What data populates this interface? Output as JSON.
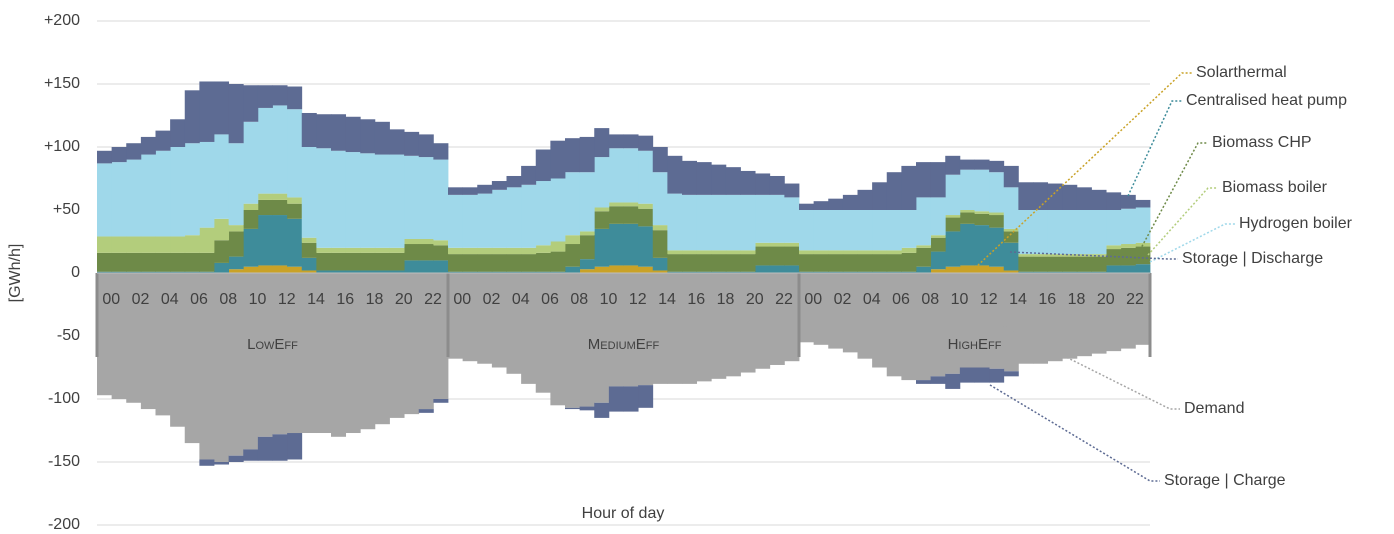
{
  "chart_data": {
    "type": "stacked-step-area",
    "y_label": "[GWh/h]",
    "x_label": "Hour of day",
    "groups": [
      "LowEff",
      "MediumEff",
      "HighEff"
    ],
    "categories": [
      "00",
      null,
      "02",
      null,
      "04",
      null,
      "06",
      null,
      "08",
      null,
      "10",
      null,
      "12",
      null,
      "14",
      null,
      "16",
      null,
      "18",
      null,
      "20",
      null,
      "22",
      null,
      "00",
      null,
      "02",
      null,
      "04",
      null,
      "06",
      null,
      "08",
      null,
      "10",
      null,
      "12",
      null,
      "14",
      null,
      "16",
      null,
      "18",
      null,
      "20",
      null,
      "22",
      null,
      "00",
      null,
      "02",
      null,
      "04",
      null,
      "06",
      null,
      "08",
      null,
      "10",
      null,
      "12",
      null,
      "14",
      null,
      "16",
      null,
      "18",
      null,
      "20",
      null,
      "22",
      null
    ],
    "ylim": [
      -200,
      200
    ],
    "yticks": [
      {
        "value": 200,
        "label": "+200"
      },
      {
        "value": 150,
        "label": "+150"
      },
      {
        "value": 100,
        "label": "+100"
      },
      {
        "value": 50,
        "label": "+50"
      },
      0,
      -50,
      -100,
      -150,
      -200
    ],
    "grid": true,
    "series": [
      {
        "name": "Solarthermal",
        "color": "#c9a227",
        "values": [
          0,
          0,
          0,
          0,
          0,
          0,
          0,
          0,
          0,
          3,
          5,
          6,
          6,
          5,
          2,
          0,
          0,
          0,
          0,
          0,
          0,
          0,
          0,
          0,
          0,
          0,
          0,
          0,
          0,
          0,
          0,
          0,
          0,
          3,
          5,
          6,
          6,
          5,
          2,
          0,
          0,
          0,
          0,
          0,
          0,
          0,
          0,
          0,
          0,
          0,
          0,
          0,
          0,
          0,
          0,
          0,
          0,
          3,
          5,
          6,
          6,
          5,
          2,
          0,
          0,
          0,
          0,
          0,
          0,
          0,
          0,
          0
        ]
      },
      {
        "name": "Centralised heat pump",
        "color": "#3e8c9a",
        "values": [
          1,
          1,
          1,
          1,
          1,
          1,
          1,
          1,
          8,
          10,
          30,
          40,
          40,
          38,
          10,
          2,
          2,
          2,
          2,
          2,
          2,
          10,
          10,
          10,
          1,
          1,
          1,
          1,
          1,
          1,
          1,
          1,
          5,
          8,
          30,
          33,
          33,
          32,
          10,
          1,
          1,
          1,
          1,
          1,
          1,
          6,
          6,
          6,
          1,
          1,
          1,
          1,
          1,
          1,
          1,
          1,
          5,
          14,
          28,
          33,
          32,
          31,
          22,
          1,
          1,
          1,
          1,
          1,
          1,
          6,
          6,
          7
        ]
      },
      {
        "name": "Biomass CHP",
        "color": "#6e8a48",
        "values": [
          15,
          15,
          15,
          15,
          15,
          15,
          15,
          15,
          18,
          20,
          15,
          12,
          12,
          12,
          12,
          14,
          14,
          14,
          14,
          14,
          14,
          13,
          13,
          12,
          14,
          14,
          14,
          14,
          14,
          14,
          15,
          16,
          18,
          19,
          14,
          14,
          14,
          14,
          22,
          14,
          14,
          14,
          14,
          14,
          14,
          15,
          15,
          15,
          14,
          14,
          14,
          14,
          14,
          14,
          14,
          15,
          15,
          11,
          11,
          9,
          9,
          10,
          9,
          12,
          12,
          12,
          12,
          12,
          12,
          13,
          14,
          14
        ]
      },
      {
        "name": "Biomass boiler",
        "color": "#b3cd7c",
        "values": [
          13,
          13,
          13,
          13,
          13,
          13,
          14,
          20,
          17,
          5,
          5,
          5,
          5,
          5,
          4,
          4,
          4,
          4,
          4,
          4,
          4,
          4,
          4,
          4,
          5,
          5,
          5,
          5,
          5,
          5,
          6,
          8,
          7,
          3,
          3,
          3,
          3,
          4,
          4,
          3,
          3,
          3,
          3,
          3,
          3,
          3,
          3,
          3,
          3,
          3,
          3,
          3,
          3,
          3,
          3,
          4,
          2,
          2,
          2,
          2,
          2,
          2,
          2,
          2,
          2,
          2,
          2,
          2,
          2,
          3,
          3,
          3
        ]
      },
      {
        "name": "Hydrogen boiler",
        "color": "#9fd8ea",
        "values": [
          58,
          59,
          61,
          65,
          68,
          71,
          73,
          68,
          67,
          65,
          65,
          68,
          70,
          70,
          72,
          79,
          77,
          76,
          75,
          74,
          74,
          66,
          65,
          64,
          42,
          42,
          43,
          46,
          48,
          50,
          51,
          50,
          50,
          47,
          40,
          43,
          43,
          42,
          42,
          45,
          44,
          44,
          44,
          44,
          44,
          38,
          38,
          36,
          32,
          32,
          32,
          32,
          32,
          32,
          32,
          30,
          38,
          30,
          32,
          32,
          33,
          32,
          33,
          35,
          35,
          35,
          35,
          35,
          35,
          28,
          28,
          28
        ]
      },
      {
        "name": "Storage | Discharge",
        "color": "#5d6b93",
        "values": [
          10,
          12,
          13,
          14,
          16,
          22,
          42,
          48,
          42,
          47,
          29,
          18,
          16,
          18,
          27,
          27,
          29,
          28,
          27,
          26,
          20,
          19,
          18,
          13,
          6,
          6,
          7,
          7,
          9,
          15,
          25,
          30,
          27,
          28,
          23,
          11,
          11,
          12,
          20,
          30,
          27,
          26,
          24,
          22,
          19,
          17,
          15,
          11,
          5,
          7,
          9,
          12,
          16,
          22,
          30,
          35,
          28,
          28,
          15,
          8,
          8,
          9,
          17,
          22,
          22,
          21,
          20,
          18,
          16,
          14,
          11,
          6
        ]
      },
      {
        "name": "Demand",
        "color": "#a6a6a6",
        "values": [
          -97,
          -100,
          -103,
          -108,
          -113,
          -122,
          -135,
          -148,
          -150,
          -145,
          -140,
          -130,
          -128,
          -127,
          -127,
          -127,
          -130,
          -127,
          -124,
          -120,
          -115,
          -112,
          -108,
          -100,
          -68,
          -70,
          -72,
          -75,
          -80,
          -88,
          -95,
          -105,
          -107,
          -106,
          -103,
          -90,
          -90,
          -89,
          -88,
          -88,
          -88,
          -86,
          -84,
          -82,
          -79,
          -76,
          -73,
          -70,
          -55,
          -57,
          -60,
          -63,
          -68,
          -75,
          -82,
          -85,
          -85,
          -82,
          -80,
          -75,
          -75,
          -76,
          -78,
          -72,
          -72,
          -70,
          -68,
          -66,
          -64,
          -62,
          -60,
          -57
        ]
      },
      {
        "name": "Storage | Charge",
        "color": "#5d6b93",
        "values": [
          0,
          0,
          0,
          0,
          0,
          0,
          0,
          -5,
          -2,
          -5,
          -9,
          -19,
          -21,
          -21,
          0,
          0,
          0,
          0,
          0,
          0,
          0,
          0,
          -3,
          -3,
          0,
          0,
          0,
          0,
          0,
          0,
          0,
          0,
          -1,
          -3,
          -12,
          -20,
          -20,
          -18,
          0,
          0,
          0,
          0,
          0,
          0,
          0,
          0,
          0,
          0,
          0,
          0,
          0,
          0,
          0,
          0,
          0,
          0,
          -3,
          -6,
          -12,
          -12,
          -12,
          -11,
          -4,
          0,
          0,
          0,
          0,
          0,
          0,
          0,
          0,
          0
        ]
      }
    ]
  }
}
